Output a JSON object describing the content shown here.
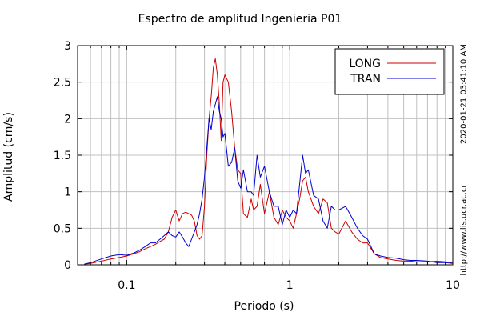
{
  "chart_data": {
    "type": "line",
    "title": "Espectro de amplitud Ingenieria P01",
    "xlabel": "Periodo (s)",
    "ylabel": "Amplitud (cm/s)",
    "xscale": "log",
    "xlim": [
      0.05,
      10
    ],
    "ylim": [
      0,
      3
    ],
    "xticks": [
      0.1,
      1,
      10
    ],
    "xtick_labels": [
      "0.1",
      "1",
      "10"
    ],
    "yticks": [
      0,
      0.5,
      1,
      1.5,
      2,
      2.5,
      3
    ],
    "ytick_labels": [
      "0",
      "0.5",
      "1",
      "1.5",
      "2",
      "2.5",
      "3"
    ],
    "grid": true,
    "legend_position": "top-right",
    "series": [
      {
        "name": "LONG",
        "color": "#cc0000",
        "x": [
          0.055,
          0.06,
          0.07,
          0.08,
          0.09,
          0.1,
          0.11,
          0.12,
          0.13,
          0.14,
          0.15,
          0.16,
          0.17,
          0.18,
          0.19,
          0.2,
          0.21,
          0.22,
          0.23,
          0.24,
          0.25,
          0.26,
          0.27,
          0.28,
          0.29,
          0.3,
          0.31,
          0.32,
          0.33,
          0.34,
          0.35,
          0.36,
          0.37,
          0.38,
          0.39,
          0.4,
          0.42,
          0.44,
          0.46,
          0.48,
          0.5,
          0.52,
          0.55,
          0.58,
          0.6,
          0.63,
          0.66,
          0.7,
          0.75,
          0.8,
          0.85,
          0.9,
          0.95,
          1.0,
          1.05,
          1.1,
          1.15,
          1.2,
          1.25,
          1.3,
          1.4,
          1.5,
          1.6,
          1.7,
          1.8,
          1.9,
          2.0,
          2.2,
          2.4,
          2.6,
          2.8,
          3.0,
          3.3,
          3.6,
          4.0,
          4.5,
          5.0,
          5.5,
          6.0,
          7.0,
          8.0,
          9.0,
          10.0
        ],
        "y": [
          0.01,
          0.02,
          0.05,
          0.08,
          0.1,
          0.12,
          0.15,
          0.18,
          0.22,
          0.25,
          0.28,
          0.32,
          0.35,
          0.45,
          0.65,
          0.75,
          0.6,
          0.7,
          0.72,
          0.7,
          0.68,
          0.6,
          0.4,
          0.35,
          0.4,
          0.8,
          1.5,
          2.0,
          2.3,
          2.7,
          2.82,
          2.6,
          2.2,
          1.7,
          2.5,
          2.6,
          2.5,
          2.1,
          1.6,
          1.3,
          1.25,
          0.7,
          0.65,
          0.9,
          0.75,
          0.8,
          1.1,
          0.7,
          1.0,
          0.65,
          0.55,
          0.75,
          0.65,
          0.6,
          0.5,
          0.7,
          0.9,
          1.15,
          1.2,
          1.0,
          0.8,
          0.7,
          0.9,
          0.85,
          0.5,
          0.45,
          0.42,
          0.6,
          0.45,
          0.35,
          0.3,
          0.3,
          0.15,
          0.1,
          0.08,
          0.06,
          0.05,
          0.05,
          0.04,
          0.04,
          0.05,
          0.04,
          0.03
        ]
      },
      {
        "name": "TRAN",
        "color": "#0000cc",
        "x": [
          0.055,
          0.06,
          0.07,
          0.08,
          0.09,
          0.1,
          0.11,
          0.12,
          0.13,
          0.14,
          0.15,
          0.16,
          0.17,
          0.18,
          0.19,
          0.2,
          0.21,
          0.22,
          0.23,
          0.24,
          0.25,
          0.26,
          0.27,
          0.28,
          0.29,
          0.3,
          0.31,
          0.32,
          0.33,
          0.34,
          0.35,
          0.36,
          0.37,
          0.38,
          0.39,
          0.4,
          0.42,
          0.44,
          0.46,
          0.48,
          0.5,
          0.52,
          0.55,
          0.58,
          0.6,
          0.63,
          0.66,
          0.7,
          0.75,
          0.8,
          0.85,
          0.9,
          0.95,
          1.0,
          1.05,
          1.1,
          1.15,
          1.2,
          1.25,
          1.3,
          1.4,
          1.5,
          1.6,
          1.7,
          1.8,
          1.9,
          2.0,
          2.2,
          2.4,
          2.6,
          2.8,
          3.0,
          3.3,
          3.6,
          4.0,
          4.5,
          5.0,
          5.5,
          6.0,
          7.0,
          8.0,
          9.0,
          10.0
        ],
        "y": [
          0.01,
          0.03,
          0.08,
          0.12,
          0.14,
          0.13,
          0.16,
          0.2,
          0.25,
          0.3,
          0.3,
          0.35,
          0.4,
          0.45,
          0.4,
          0.38,
          0.45,
          0.38,
          0.3,
          0.25,
          0.35,
          0.45,
          0.55,
          0.7,
          0.9,
          1.2,
          1.6,
          2.0,
          1.85,
          2.1,
          2.2,
          2.3,
          2.1,
          2.0,
          1.75,
          1.8,
          1.35,
          1.4,
          1.6,
          1.15,
          1.05,
          1.3,
          1.0,
          1.0,
          0.95,
          1.5,
          1.2,
          1.35,
          1.0,
          0.8,
          0.8,
          0.55,
          0.75,
          0.65,
          0.75,
          0.7,
          1.1,
          1.5,
          1.25,
          1.3,
          0.95,
          0.9,
          0.6,
          0.5,
          0.8,
          0.75,
          0.75,
          0.8,
          0.65,
          0.5,
          0.4,
          0.35,
          0.15,
          0.12,
          0.1,
          0.09,
          0.07,
          0.06,
          0.06,
          0.05,
          0.03,
          0.03,
          0.02
        ]
      }
    ],
    "annotations": [
      "2020-01-21 03:41:10 AM",
      "http://www.lis.ucr.ac.cr"
    ]
  }
}
